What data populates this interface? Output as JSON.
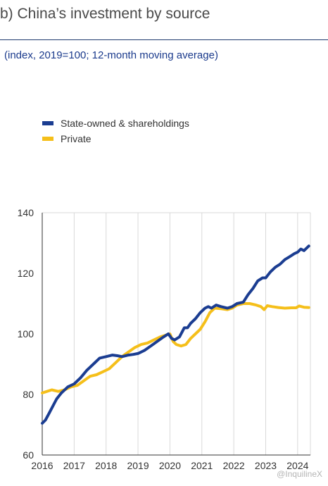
{
  "header": {
    "title": "b) China’s investment by source",
    "subtitle": "(index, 2019=100; 12-month moving average)"
  },
  "watermark": "@InquilineX",
  "colors": {
    "soe": "#1b3d91",
    "private": "#f5bf1a",
    "grid": "#d9d9d9",
    "axis": "#333333"
  },
  "chart_data": {
    "type": "line",
    "title": "b) China’s investment by source",
    "subtitle": "(index, 2019=100; 12-month moving average)",
    "xlabel": "",
    "ylabel": "",
    "xlim": [
      2016,
      2024.4
    ],
    "ylim": [
      60,
      140
    ],
    "x_ticks": [
      2016,
      2017,
      2018,
      2019,
      2020,
      2021,
      2022,
      2023,
      2024
    ],
    "y_ticks": [
      60,
      80,
      100,
      120,
      140
    ],
    "grid": "vertical",
    "legend_position": "top-left",
    "series": [
      {
        "name": "State-owned & shareholdings",
        "color": "#1b3d91",
        "x": [
          2016.0,
          2016.1,
          2016.2,
          2016.3,
          2016.45,
          2016.6,
          2016.8,
          2017.0,
          2017.2,
          2017.4,
          2017.6,
          2017.8,
          2018.0,
          2018.2,
          2018.35,
          2018.5,
          2018.7,
          2018.85,
          2019.0,
          2019.2,
          2019.4,
          2019.6,
          2019.8,
          2019.95,
          2020.05,
          2020.15,
          2020.3,
          2020.45,
          2020.55,
          2020.65,
          2020.8,
          2020.95,
          2021.1,
          2021.2,
          2021.3,
          2021.45,
          2021.6,
          2021.8,
          2021.95,
          2022.1,
          2022.3,
          2022.45,
          2022.6,
          2022.75,
          2022.9,
          2023.0,
          2023.15,
          2023.3,
          2023.45,
          2023.6,
          2023.75,
          2023.9,
          2024.0,
          2024.1,
          2024.2,
          2024.35
        ],
        "values": [
          70.5,
          71.5,
          73.5,
          75.5,
          78.5,
          80.5,
          82.5,
          83.5,
          85.5,
          88,
          90,
          92,
          92.5,
          93,
          92.8,
          92.5,
          93,
          93.2,
          93.5,
          94.5,
          96,
          97.5,
          99,
          100,
          98.5,
          98,
          99,
          102,
          102,
          103.5,
          105,
          107,
          108.5,
          109,
          108.5,
          109.5,
          109,
          108.5,
          109,
          110,
          110.5,
          113,
          115,
          117.5,
          118.5,
          118.5,
          120.5,
          122,
          123,
          124.5,
          125.5,
          126.5,
          127,
          128,
          127.5,
          129
        ]
      },
      {
        "name": "Private",
        "color": "#f5bf1a",
        "x": [
          2016.0,
          2016.15,
          2016.3,
          2016.5,
          2016.7,
          2016.9,
          2017.1,
          2017.3,
          2017.5,
          2017.7,
          2017.9,
          2018.1,
          2018.3,
          2018.5,
          2018.7,
          2018.9,
          2019.1,
          2019.3,
          2019.5,
          2019.7,
          2019.85,
          2020.0,
          2020.1,
          2020.2,
          2020.35,
          2020.5,
          2020.65,
          2020.8,
          2020.95,
          2021.1,
          2021.25,
          2021.4,
          2021.6,
          2021.8,
          2021.95,
          2022.1,
          2022.3,
          2022.5,
          2022.7,
          2022.85,
          2022.95,
          2023.05,
          2023.2,
          2023.4,
          2023.6,
          2023.8,
          2023.95,
          2024.05,
          2024.2,
          2024.35
        ],
        "values": [
          80.5,
          81,
          81.5,
          81,
          81.5,
          82.5,
          83,
          84.5,
          86,
          86.5,
          87.5,
          88.5,
          90.5,
          92.5,
          94,
          95.5,
          96.5,
          97,
          98,
          99,
          99.5,
          100,
          97.5,
          96.5,
          96,
          96.5,
          98.5,
          100,
          101.5,
          104,
          107,
          108.5,
          108.3,
          108,
          108.5,
          109.5,
          110,
          110,
          109.5,
          109,
          108,
          109.3,
          109,
          108.7,
          108.5,
          108.6,
          108.6,
          109.2,
          108.8,
          108.7
        ]
      }
    ]
  }
}
